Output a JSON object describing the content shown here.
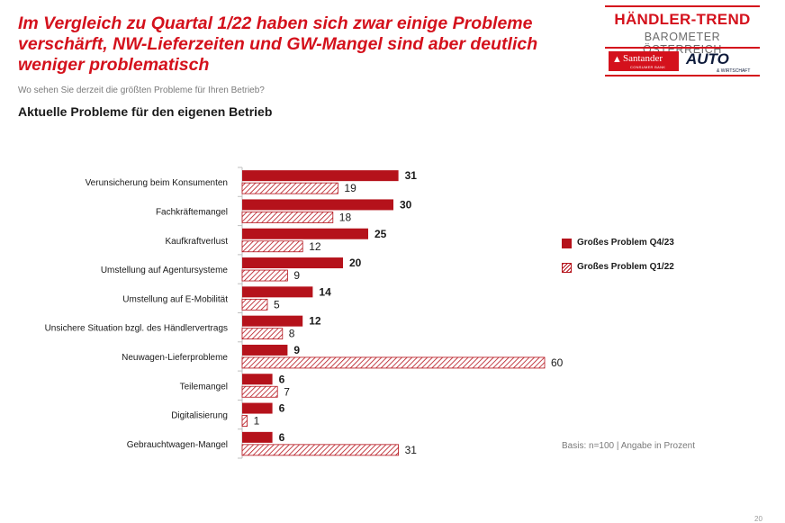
{
  "header": {
    "headline": "Im Vergleich zu Quartal 1/22 haben sich zwar einige Probleme verschärft, NW-Lieferzeiten und GW-Mangel sind aber deutlich weniger problematisch",
    "subtitle": "Wo sehen Sie derzeit die größten Probleme für Ihren Betrieb?",
    "chart_heading": "Aktuelle Probleme für den eigenen Betrieb"
  },
  "logo": {
    "title": "HÄNDLER-TREND",
    "subtitle": "BAROMETER ÖSTERREICH",
    "sponsor_1": "Santander",
    "sponsor_1_tag": "CONSUMER BANK",
    "sponsor_2": "AUTO",
    "sponsor_2_tag": "& WIRTSCHAFT"
  },
  "footer": {
    "basis": "Basis: n=100 | Angabe in Prozent",
    "page_number": "20"
  },
  "colors": {
    "headline": "#d4111c",
    "bar": "#b5121b",
    "axis": "#bfbfbf"
  },
  "chart_data": {
    "type": "bar",
    "orientation": "horizontal",
    "title": "Aktuelle Probleme für den eigenen Betrieb",
    "categories": [
      "Verunsicherung beim Konsumenten",
      "Fachkräftemangel",
      "Kaufkraftverlust",
      "Umstellung auf Agentursysteme",
      "Umstellung auf E-Mobilität",
      "Unsichere Situation bzgl. des Händlervertrags",
      "Neuwagen-Lieferprobleme",
      "Teilemangel",
      "Digitalisierung",
      "Gebrauchtwagen-Mangel"
    ],
    "series": [
      {
        "name": "Großes Problem Q4/23",
        "style": "solid",
        "values": [
          31,
          30,
          25,
          20,
          14,
          12,
          9,
          6,
          6,
          6
        ]
      },
      {
        "name": "Großes Problem Q1/22",
        "style": "hatched",
        "values": [
          19,
          18,
          12,
          9,
          5,
          8,
          60,
          7,
          1,
          31
        ]
      }
    ],
    "xlim": [
      0,
      60
    ],
    "legend": "right",
    "grid": false
  }
}
